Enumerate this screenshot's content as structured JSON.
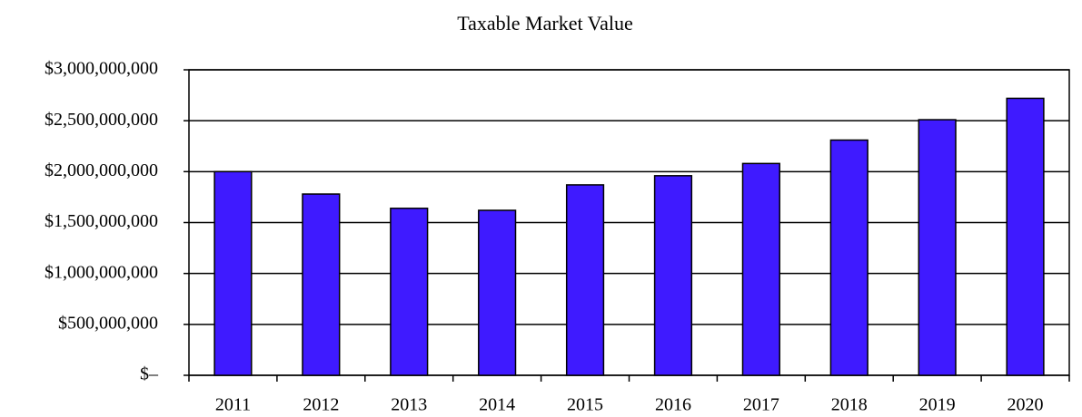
{
  "chart_data": {
    "type": "bar",
    "title": "Taxable Market Value",
    "categories": [
      "2011",
      "2012",
      "2013",
      "2014",
      "2015",
      "2016",
      "2017",
      "2018",
      "2019",
      "2020"
    ],
    "values": [
      2000000000,
      1780000000,
      1640000000,
      1620000000,
      1870000000,
      1960000000,
      2080000000,
      2310000000,
      2510000000,
      2720000000
    ],
    "color": "#3f1aff",
    "ylim": [
      0,
      3000000000
    ],
    "yticks": [
      {
        "value": 0,
        "label": "$–"
      },
      {
        "value": 500000000,
        "label": "$500,000,000"
      },
      {
        "value": 1000000000,
        "label": "$1,000,000,000"
      },
      {
        "value": 1500000000,
        "label": "$1,500,000,000"
      },
      {
        "value": 2000000000,
        "label": "$2,000,000,000"
      },
      {
        "value": 2500000000,
        "label": "$2,500,000,000"
      },
      {
        "value": 3000000000,
        "label": "$3,000,000,000"
      }
    ],
    "grid": true
  }
}
